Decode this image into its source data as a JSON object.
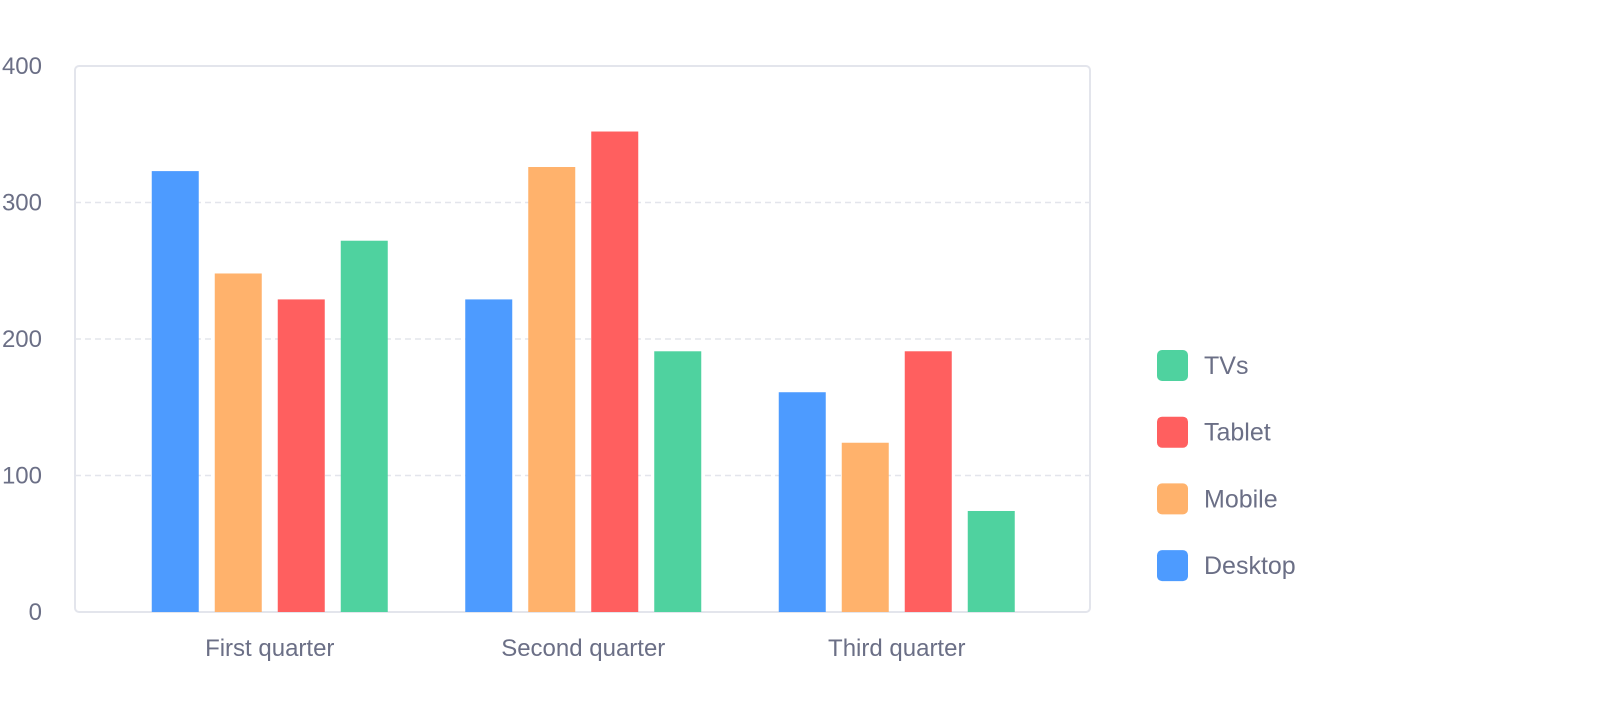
{
  "chart_data": {
    "type": "bar",
    "categories": [
      "First quarter",
      "Second quarter",
      "Third quarter"
    ],
    "series": [
      {
        "name": "Desktop",
        "color": "#4d9bff",
        "values": [
          323,
          229,
          161
        ]
      },
      {
        "name": "Mobile",
        "color": "#ffb26c",
        "values": [
          248,
          326,
          124
        ]
      },
      {
        "name": "Tablet",
        "color": "#ff5f5f",
        "values": [
          229,
          352,
          191
        ]
      },
      {
        "name": "TVs",
        "color": "#4fd29f",
        "values": [
          272,
          191,
          74
        ]
      }
    ],
    "y_ticks": [
      "0",
      "100",
      "200",
      "300",
      "400"
    ],
    "ylim": [
      0,
      400
    ],
    "grid": true,
    "legend": {
      "position": "right",
      "order": [
        "TVs",
        "Tablet",
        "Mobile",
        "Desktop"
      ]
    },
    "title": "",
    "xlabel": "",
    "ylabel": ""
  }
}
